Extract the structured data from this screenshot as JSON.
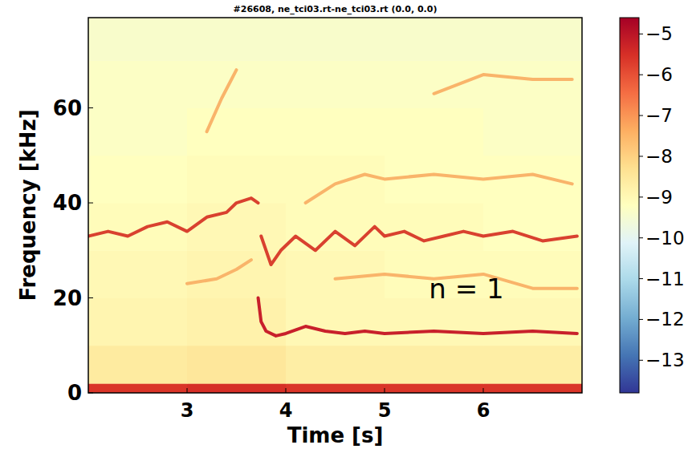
{
  "chart_data": {
    "type": "spectrogram",
    "title": "#26608, ne_tci03.rt-ne_tci03.rt (0.0, 0.0)",
    "x_label": "Time [s]",
    "y_label": "Frequency [kHz]",
    "xlim": [
      2.0,
      7.0
    ],
    "ylim": [
      0,
      79
    ],
    "xticks": [
      3,
      4,
      5,
      6
    ],
    "yticks": [
      0,
      20,
      40,
      60
    ],
    "time_bins": [
      2,
      3,
      4,
      5,
      6,
      7
    ],
    "freq_bins": [
      0,
      2,
      10,
      20,
      30,
      40,
      50,
      60,
      70,
      79
    ],
    "cells": [
      [
        -5.6,
        -5.5,
        -5.6,
        -5.6,
        -5.6
      ],
      [
        -8.6,
        -8.5,
        -8.7,
        -8.7,
        -8.7
      ],
      [
        -8.9,
        -8.8,
        -9.0,
        -9.0,
        -9.0
      ],
      [
        -9.0,
        -8.9,
        -9.0,
        -9.1,
        -9.1
      ],
      [
        -9.1,
        -9.0,
        -9.1,
        -9.1,
        -9.2
      ],
      [
        -9.2,
        -9.1,
        -9.1,
        -9.2,
        -9.2
      ],
      [
        -9.3,
        -9.2,
        -9.2,
        -9.2,
        -9.3
      ],
      [
        -9.3,
        -9.3,
        -9.3,
        -9.3,
        -9.3
      ],
      [
        -9.4,
        -9.4,
        -9.4,
        -9.4,
        -9.4
      ]
    ],
    "colorbar": {
      "range": [
        -13.8,
        -4.6
      ],
      "ticks": [
        {
          "value": -5,
          "label": "−5"
        },
        {
          "value": -6,
          "label": "−6"
        },
        {
          "value": -7,
          "label": "−7"
        },
        {
          "value": -8,
          "label": "−8"
        },
        {
          "value": -9,
          "label": "−9"
        },
        {
          "value": -10,
          "label": "−10"
        },
        {
          "value": -11,
          "label": "−11"
        },
        {
          "value": -12,
          "label": "−12"
        },
        {
          "value": -13,
          "label": "−13"
        }
      ]
    },
    "series": [
      {
        "color": "#d9412f",
        "x": [
          2.0,
          2.2,
          2.4,
          2.6,
          2.8,
          3.0,
          3.2,
          3.4,
          3.5,
          3.65,
          3.72,
          3.74,
          3.75,
          3.85,
          3.95,
          4.1,
          4.3,
          4.5,
          4.7,
          4.9,
          5.0,
          5.2,
          5.4,
          5.6,
          5.8,
          6.0,
          6.3,
          6.6,
          6.95
        ],
        "values": [
          33,
          34,
          33,
          35,
          36,
          34,
          37,
          38,
          40,
          41,
          40,
          null,
          33,
          27,
          30,
          33,
          30,
          34,
          31,
          35,
          33,
          34,
          32,
          33,
          34,
          33,
          34,
          32,
          33
        ]
      },
      {
        "color": "#c8202b",
        "x": [
          3.72,
          3.75,
          3.8,
          3.9,
          4.0,
          4.2,
          4.4,
          4.6,
          4.8,
          5.0,
          5.5,
          6.0,
          6.5,
          6.95
        ],
        "values": [
          20,
          15,
          13,
          12,
          12.5,
          14,
          13,
          12.5,
          13,
          12.5,
          13,
          12.5,
          13,
          12.5
        ]
      },
      {
        "color": "#f9b46a",
        "x": [
          3.0,
          3.3,
          3.5,
          3.65,
          3.7,
          4.5,
          5.0,
          5.5,
          6.0,
          6.5,
          6.95,
          7.0,
          4.2,
          4.5,
          4.8,
          5.0,
          5.5,
          6.0,
          6.5,
          6.9,
          6.95,
          3.2,
          3.35,
          3.45,
          3.5,
          3.55,
          5.5,
          6.0,
          6.5,
          6.9
        ],
        "values": [
          23,
          24,
          26,
          28,
          null,
          24,
          25,
          24,
          25,
          22,
          22,
          null,
          40,
          44,
          46,
          45,
          46,
          45,
          46,
          44,
          null,
          55,
          62,
          66,
          68,
          null,
          63,
          67,
          66,
          66
        ]
      }
    ],
    "annotations": [
      {
        "text": "n = 1",
        "x": 5.45,
        "y": 22
      }
    ]
  }
}
